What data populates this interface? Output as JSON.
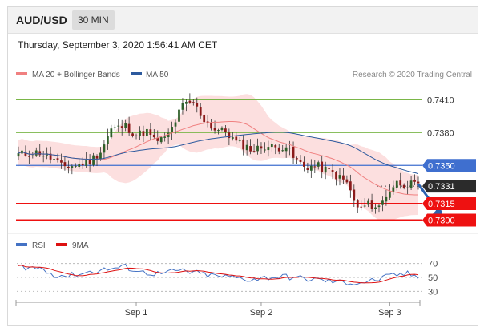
{
  "header": {
    "symbol": "AUD/USD",
    "timeframe": "30 MIN"
  },
  "datetime": "Thursday, September 3, 2020 1:56:41 AM CET",
  "colors": {
    "ma20": "#f08080",
    "ma50": "#2d5a9e",
    "bollinger": "#fbd9d9",
    "bull": "#2f5f2a",
    "bear": "#8b1a1a",
    "wick": "#333333",
    "support": "#ee1111",
    "pivot": "#3f6fcf",
    "resistance": "#7ab648",
    "current": "#2b2b2b",
    "rsi": "#4472c4",
    "rsi_ma": "#dd1111",
    "arrow": "#2a62b0"
  },
  "legend": {
    "ma20_label": "MA 20 + Bollinger Bands",
    "ma50_label": "MA 50",
    "credit": "Research © 2020 Trading Central"
  },
  "rsi_legend": {
    "rsi_label": "RSI",
    "ma_label": "9MA"
  },
  "chart_data": {
    "type": "candlestick",
    "y_range": [
      0.7293,
      0.7425
    ],
    "levels": [
      {
        "label": "0.7410",
        "value": 0.741,
        "role": "resistance"
      },
      {
        "label": "0.7380",
        "value": 0.738,
        "role": "resistance"
      },
      {
        "label": "0.7350",
        "value": 0.735,
        "role": "pivot"
      },
      {
        "label": "0.7331",
        "value": 0.7331,
        "role": "current"
      },
      {
        "label": "0.7315",
        "value": 0.7315,
        "role": "support"
      },
      {
        "label": "0.7300",
        "value": 0.73,
        "role": "support"
      }
    ],
    "x_ticks": [
      {
        "label": "Sep 1",
        "index": 33
      },
      {
        "label": "Sep 2",
        "index": 68
      },
      {
        "label": "Sep 3",
        "index": 104
      }
    ],
    "price_path": [
      [
        0,
        0.736
      ],
      [
        6,
        0.7362
      ],
      [
        10,
        0.7355
      ],
      [
        12,
        0.7349
      ],
      [
        16,
        0.735
      ],
      [
        20,
        0.7354
      ],
      [
        23,
        0.7363
      ],
      [
        26,
        0.7383
      ],
      [
        30,
        0.7386
      ],
      [
        33,
        0.7378
      ],
      [
        36,
        0.7381
      ],
      [
        38,
        0.7373
      ],
      [
        41,
        0.7374
      ],
      [
        43,
        0.7384
      ],
      [
        46,
        0.7405
      ],
      [
        49,
        0.7407
      ],
      [
        52,
        0.7392
      ],
      [
        55,
        0.7383
      ],
      [
        58,
        0.7381
      ],
      [
        61,
        0.7371
      ],
      [
        64,
        0.7367
      ],
      [
        66,
        0.7364
      ],
      [
        69,
        0.7368
      ],
      [
        72,
        0.7366
      ],
      [
        75,
        0.7368
      ],
      [
        77,
        0.7357
      ],
      [
        80,
        0.7349
      ],
      [
        84,
        0.7349
      ],
      [
        88,
        0.7343
      ],
      [
        92,
        0.7334
      ],
      [
        95,
        0.731
      ],
      [
        98,
        0.7314
      ],
      [
        101,
        0.7312
      ],
      [
        104,
        0.7328
      ],
      [
        106,
        0.7334
      ],
      [
        109,
        0.7333
      ],
      [
        112,
        0.7331
      ]
    ],
    "candle_count": 113,
    "projection": {
      "from": [
        112,
        0.7333
      ],
      "to": [
        119,
        0.7303
      ]
    },
    "rsi": {
      "range": [
        20,
        80
      ],
      "ticks": [
        70,
        50,
        30
      ],
      "path": [
        [
          0,
          66
        ],
        [
          6,
          63
        ],
        [
          10,
          54
        ],
        [
          14,
          52
        ],
        [
          20,
          58
        ],
        [
          25,
          62
        ],
        [
          30,
          65
        ],
        [
          35,
          57
        ],
        [
          40,
          55
        ],
        [
          45,
          60
        ],
        [
          50,
          56
        ],
        [
          55,
          52
        ],
        [
          60,
          50
        ],
        [
          65,
          47
        ],
        [
          70,
          50
        ],
        [
          75,
          51
        ],
        [
          80,
          48
        ],
        [
          85,
          46
        ],
        [
          90,
          43
        ],
        [
          95,
          42
        ],
        [
          100,
          46
        ],
        [
          105,
          53
        ],
        [
          109,
          55
        ],
        [
          112,
          51
        ]
      ]
    }
  }
}
